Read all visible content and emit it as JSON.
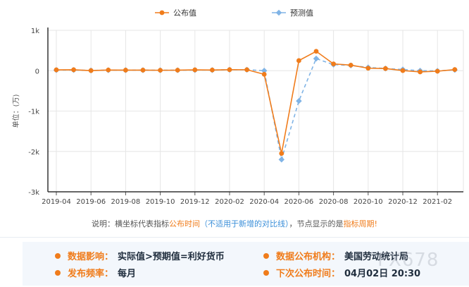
{
  "chart_data": {
    "type": "line",
    "ylabel": "单位：(万)",
    "y_ticks": [
      "1k",
      "0",
      "-1k",
      "-2k",
      "-3k"
    ],
    "y_tick_values": [
      1000,
      0,
      -1000,
      -2000,
      -3000
    ],
    "ylim": [
      -3000,
      1000
    ],
    "x_ticks": [
      "2019-04",
      "2019-06",
      "2019-08",
      "2019-10",
      "2019-12",
      "2020-02",
      "2020-04",
      "2020-06",
      "2020-08",
      "2020-10",
      "2020-12",
      "2021-02"
    ],
    "categories": [
      "2019-04",
      "2019-05",
      "2019-06",
      "2019-07",
      "2019-08",
      "2019-09",
      "2019-10",
      "2019-11",
      "2019-12",
      "2020-01",
      "2020-02",
      "2020-03",
      "2020-04",
      "2020-05",
      "2020-06",
      "2020-07",
      "2020-08",
      "2020-09",
      "2020-10",
      "2020-11",
      "2020-12",
      "2021-01",
      "2021-02",
      "2021-03"
    ],
    "grid": true,
    "legend_position": "top-center",
    "series": [
      {
        "name": "公布值",
        "color": "#f07c1b",
        "style": "solid",
        "values": [
          21,
          23,
          3,
          17,
          14,
          14,
          11,
          13,
          21,
          17,
          25,
          24,
          -90,
          -2050,
          250,
          480,
          168,
          138,
          61,
          54,
          3,
          -30,
          -13,
          28
        ]
      },
      {
        "name": "预测值",
        "color": "#80b4e6",
        "style": "dashed",
        "values": [
          15,
          17,
          7,
          14,
          14,
          14,
          11,
          12,
          15,
          16,
          24,
          24,
          0,
          -2200,
          -750,
          300,
          150,
          130,
          80,
          55,
          30,
          0,
          -5,
          20
        ]
      }
    ]
  },
  "note": {
    "prefix": "说明：横坐标代表指标",
    "highlight1": "公布时间",
    "middle": "（不适用于新增的对比线）",
    "suffix1": "，节点显示的是",
    "highlight2": "指标周期",
    "suffix2": "!"
  },
  "info": {
    "impact_label": "数据影响：",
    "impact_value": "实际值>预期值=利好货币",
    "agency_label": "数据公布机构：",
    "agency_value": "美国劳动统计局",
    "frequency_label": "发布频率：",
    "frequency_value": "每月",
    "next_label": "下次公布时间：",
    "next_value": "04月02日 20:30"
  },
  "watermark": "FX678"
}
